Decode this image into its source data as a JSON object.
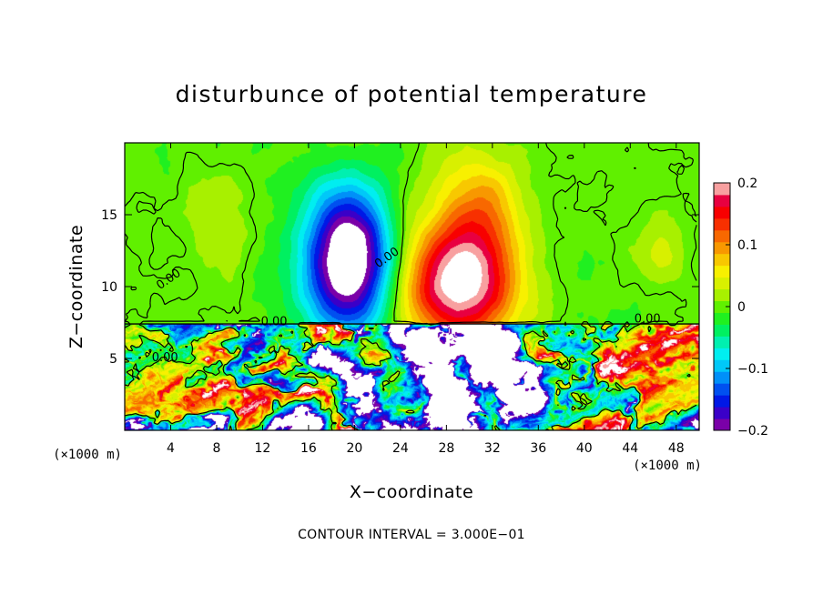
{
  "chart_data": {
    "type": "heatmap",
    "title": "disturbunce of potential temperature",
    "xlabel": "X−coordinate",
    "ylabel": "Z−coordinate",
    "x_unit_label": "(×1000 m)",
    "xlim": [
      0,
      50
    ],
    "ylim": [
      0,
      20
    ],
    "x_ticks": [
      4,
      8,
      12,
      16,
      20,
      24,
      28,
      32,
      36,
      40,
      44,
      48
    ],
    "y_ticks": [
      5,
      10,
      15
    ],
    "note": "CONTOUR INTERVAL = 3.000E−01",
    "contour_labels": [
      {
        "text": "0.00",
        "x": 4.0,
        "y": 10.3
      },
      {
        "text": "0.00",
        "x": 23.0,
        "y": 11.8
      },
      {
        "text": "0.00",
        "x": 13.0,
        "y": 7.3
      },
      {
        "text": "0.00",
        "x": 45.5,
        "y": 7.5
      },
      {
        "text": "0.00",
        "x": 3.5,
        "y": 4.8
      }
    ],
    "colorbar": {
      "range": [
        -0.2,
        0.2
      ],
      "tick_values": [
        0.2,
        0.1,
        0,
        -0.1,
        -0.2
      ],
      "tick_labels": [
        "0.2",
        "0.1",
        "0",
        "−0.1",
        "−0.2"
      ],
      "colors": [
        "#7a00a8",
        "#3a00c8",
        "#0018e6",
        "#0050f0",
        "#0090f8",
        "#00c8f8",
        "#00eef0",
        "#00f0b0",
        "#00f060",
        "#20f020",
        "#60f000",
        "#a8f000",
        "#d8f000",
        "#f8f000",
        "#f8c800",
        "#f89800",
        "#f86800",
        "#f83000",
        "#f80000",
        "#e80040",
        "#f8a0a0"
      ]
    },
    "anomalies": [
      {
        "x": 19.5,
        "y": 11,
        "sx": 4.0,
        "sy": 4.5,
        "amp": -0.2
      },
      {
        "x": 19.5,
        "y": 14,
        "sx": 3.5,
        "sy": 4.0,
        "amp": -0.09
      },
      {
        "x": 29.0,
        "y": 10,
        "sx": 5.0,
        "sy": 4.0,
        "amp": 0.2
      },
      {
        "x": 30.5,
        "y": 15,
        "sx": 4.0,
        "sy": 4.5,
        "amp": 0.09
      },
      {
        "x": 8.0,
        "y": 15.5,
        "sx": 3.0,
        "sy": 3.0,
        "amp": 0.035
      },
      {
        "x": 46.5,
        "y": 12.5,
        "sx": 1.5,
        "sy": 2.0,
        "amp": 0.03
      }
    ]
  }
}
